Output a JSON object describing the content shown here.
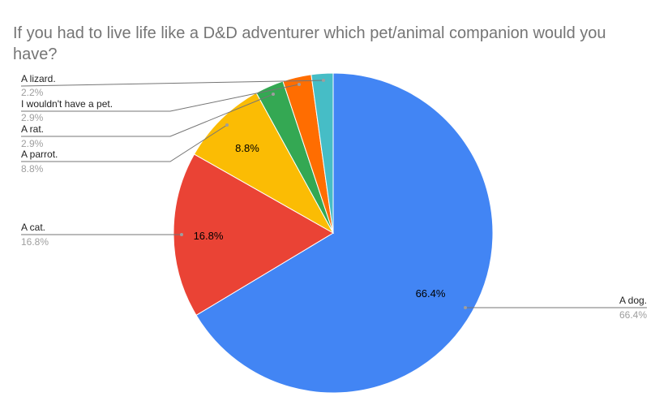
{
  "chart_data": {
    "type": "pie",
    "title": "If you had to live life like a D&D adventurer which pet/animal companion would you have?",
    "categories": [
      "A dog.",
      "A cat.",
      "A parrot.",
      "A rat.",
      "I wouldn't have a pet.",
      "A lizard."
    ],
    "values": [
      66.4,
      16.8,
      8.8,
      2.9,
      2.9,
      2.2
    ],
    "value_labels": [
      "66.4%",
      "16.8%",
      "8.8%",
      "2.9%",
      "2.9%",
      "2.2%"
    ],
    "colors": [
      "#4285f4",
      "#ea4335",
      "#fbbc04",
      "#34a853",
      "#ff6d01",
      "#46bdc6"
    ],
    "inner_labels": [
      "66.4%",
      "16.8%",
      "8.8%"
    ],
    "legend": "labeled leader lines"
  },
  "title": "If you had to live life like a D&D adventurer which pet/animal companion would you have?"
}
